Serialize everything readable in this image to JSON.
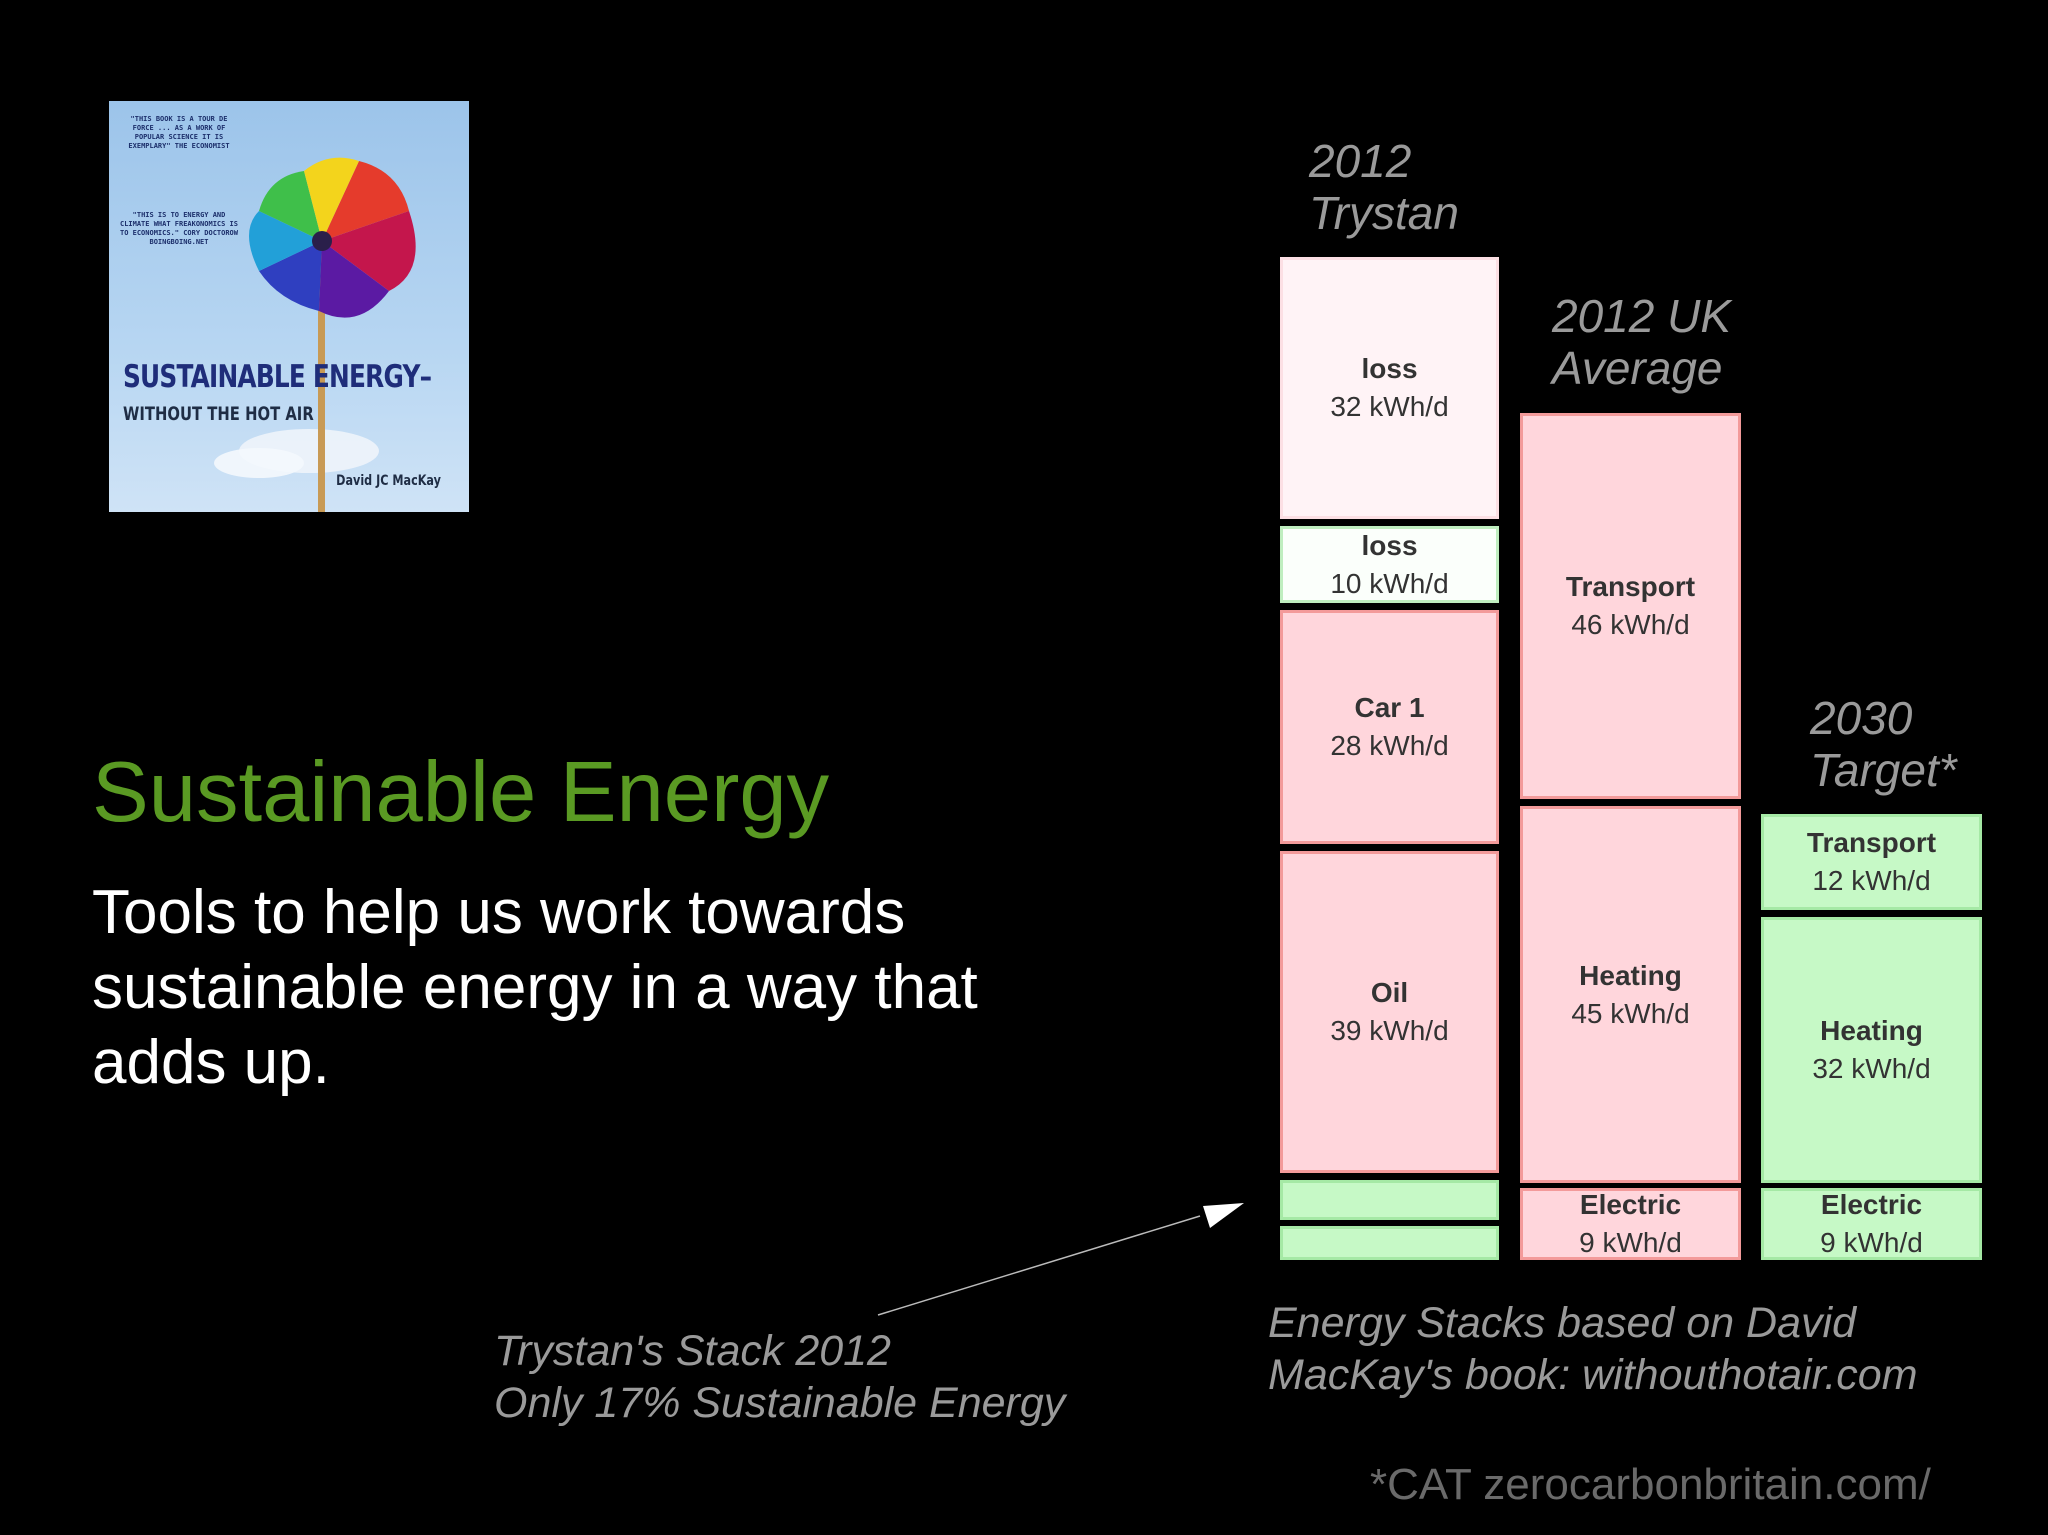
{
  "book": {
    "blurb1": "\"THIS BOOK IS A TOUR DE FORCE ... AS A WORK OF POPULAR SCIENCE IT IS EXEMPLARY\" THE ECONOMIST",
    "blurb2": "\"THIS IS TO ENERGY AND CLIMATE WHAT FREAKONOMICS IS TO ECONOMICS.\" CORY DOCTOROW BOINGBOING.NET",
    "title_part1": "SUSTAINABLE",
    "title_part2": "ENERGY–",
    "subtitle": "WITHOUT THE HOT AIR",
    "author": "David JC MacKay"
  },
  "slide": {
    "title": "Sustainable Energy",
    "subtitle": "Tools to help us work towards sustainable energy in a way that adds up."
  },
  "stacks": {
    "col1_label": [
      "2012",
      "Trystan"
    ],
    "col2_label": [
      "2012 UK",
      "Average"
    ],
    "col3_label": [
      "2030",
      "Target*"
    ],
    "col1": {
      "loss_a": {
        "name": "loss",
        "value": "32 kWh/d"
      },
      "loss_b": {
        "name": "loss",
        "value": "10 kWh/d"
      },
      "car": {
        "name": "Car 1",
        "value": "28 kWh/d"
      },
      "oil": {
        "name": "Oil",
        "value": "39 kWh/d"
      }
    },
    "col2": {
      "transport": {
        "name": "Transport",
        "value": "46 kWh/d"
      },
      "heating": {
        "name": "Heating",
        "value": "45 kWh/d"
      },
      "electric": {
        "name": "Electric",
        "value": "9 kWh/d"
      }
    },
    "col3": {
      "transport": {
        "name": "Transport",
        "value": "12 kWh/d"
      },
      "heating": {
        "name": "Heating",
        "value": "32 kWh/d"
      },
      "electric": {
        "name": "Electric",
        "value": "9 kWh/d"
      }
    }
  },
  "notes": {
    "trystan": [
      "Trystan's Stack 2012",
      "Only 17% Sustainable Energy"
    ],
    "source": [
      "Energy Stacks based on David",
      "MacKay's book: withouthotair.com"
    ],
    "footnote": "*CAT zerocarbonbritain.com/"
  },
  "colors": {
    "title_green": "#5a9a23",
    "unsustainable_red": "#ffd6dc",
    "sustainable_green": "#c6f9c6",
    "label_gray": "#9a9a9a"
  }
}
